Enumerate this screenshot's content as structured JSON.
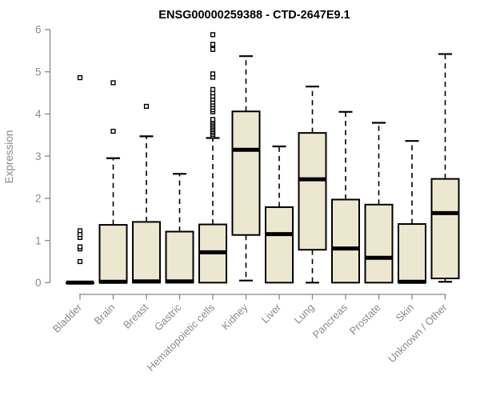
{
  "chart_data": {
    "type": "boxplot",
    "title": "ENSG00000259388 - CTD-2647E9.1",
    "ylabel": "Expression",
    "xlabel": "",
    "ylim": [
      0,
      6
    ],
    "yticks": [
      0,
      1,
      2,
      3,
      4,
      5,
      6
    ],
    "grid": "off",
    "legend": "none",
    "categories": [
      "Bladder",
      "Brain",
      "Breast",
      "Gastric",
      "Hematopoietic cells",
      "Kidney",
      "Liver",
      "Lung",
      "Pancreas",
      "Prostate",
      "Skin",
      "Unknown / Other"
    ],
    "boxes": [
      {
        "label": "Bladder",
        "low": 0,
        "q1": 0,
        "median": 0,
        "q3": 0,
        "high": 0,
        "outliers": [
          0.5,
          0.8,
          0.85,
          1.07,
          1.14,
          1.23,
          4.86
        ]
      },
      {
        "label": "Brain",
        "low": 0,
        "q1": 0,
        "median": 0.02,
        "q3": 1.37,
        "high": 2.95,
        "outliers": [
          3.59,
          4.74
        ]
      },
      {
        "label": "Breast",
        "low": 0,
        "q1": 0,
        "median": 0.03,
        "q3": 1.44,
        "high": 3.47,
        "outliers": [
          4.18
        ]
      },
      {
        "label": "Gastric",
        "low": 0,
        "q1": 0,
        "median": 0.03,
        "q3": 1.21,
        "high": 2.58,
        "outliers": []
      },
      {
        "label": "Hematopoietic cells",
        "low": 0,
        "q1": 0,
        "median": 0.72,
        "q3": 1.38,
        "high": 3.43,
        "outliers": [
          3.47,
          3.51,
          3.55,
          3.59,
          3.63,
          3.67,
          3.71,
          3.75,
          3.79,
          3.83,
          3.87,
          4.05,
          4.1,
          4.16,
          4.22,
          4.28,
          4.35,
          4.42,
          4.5,
          4.58,
          4.87,
          4.95,
          5.53,
          5.65,
          5.88
        ]
      },
      {
        "label": "Kidney",
        "low": 0.05,
        "q1": 1.13,
        "median": 3.15,
        "q3": 4.06,
        "high": 5.37,
        "outliers": []
      },
      {
        "label": "Liver",
        "low": 0,
        "q1": 0,
        "median": 1.15,
        "q3": 1.79,
        "high": 3.23,
        "outliers": []
      },
      {
        "label": "Lung",
        "low": 0,
        "q1": 0.78,
        "median": 2.45,
        "q3": 3.55,
        "high": 4.65,
        "outliers": []
      },
      {
        "label": "Pancreas",
        "low": 0,
        "q1": 0,
        "median": 0.81,
        "q3": 1.97,
        "high": 4.05,
        "outliers": []
      },
      {
        "label": "Prostate",
        "low": 0,
        "q1": 0,
        "median": 0.59,
        "q3": 1.85,
        "high": 3.79,
        "outliers": []
      },
      {
        "label": "Skin",
        "low": 0,
        "q1": 0,
        "median": 0.02,
        "q3": 1.39,
        "high": 3.36,
        "outliers": []
      },
      {
        "label": "Unknown / Other",
        "low": 0.02,
        "q1": 0.1,
        "median": 1.65,
        "q3": 2.46,
        "high": 5.42,
        "outliers": []
      }
    ],
    "colors": {
      "box_fill": "#ece8cf",
      "box_stroke": "#000000",
      "median": "#000000",
      "whisker": "#000000",
      "outlier_stroke": "#000000",
      "axis": "#888888",
      "tick_label": "#8a8a8a",
      "title": "#000000",
      "background": "#ffffff"
    }
  }
}
